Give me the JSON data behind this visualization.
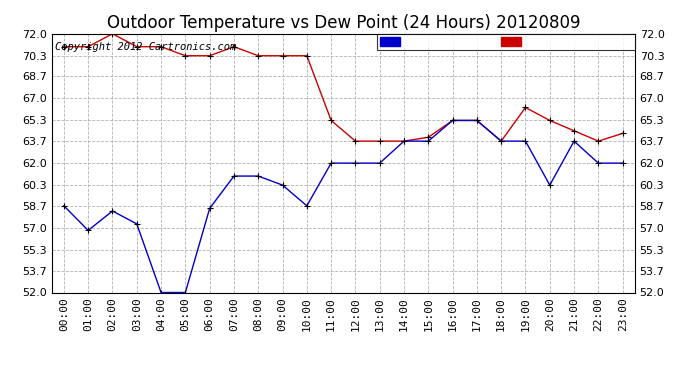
{
  "title": "Outdoor Temperature vs Dew Point (24 Hours) 20120809",
  "copyright": "Copyright 2012 Cartronics.com",
  "background_color": "#ffffff",
  "plot_bg_color": "#ffffff",
  "grid_color": "#aaaaaa",
  "hours": [
    "00:00",
    "01:00",
    "02:00",
    "03:00",
    "04:00",
    "05:00",
    "06:00",
    "07:00",
    "08:00",
    "09:00",
    "10:00",
    "11:00",
    "12:00",
    "13:00",
    "14:00",
    "15:00",
    "16:00",
    "17:00",
    "18:00",
    "19:00",
    "20:00",
    "21:00",
    "22:00",
    "23:00"
  ],
  "temperature": [
    71.0,
    71.0,
    72.0,
    71.0,
    71.0,
    70.3,
    70.3,
    71.0,
    70.3,
    70.3,
    70.3,
    65.3,
    63.7,
    63.7,
    63.7,
    64.0,
    65.3,
    65.3,
    63.7,
    66.3,
    65.3,
    64.5,
    63.7,
    64.3
  ],
  "dew_point": [
    58.7,
    56.8,
    58.3,
    57.3,
    52.0,
    52.0,
    58.5,
    61.0,
    61.0,
    60.3,
    58.7,
    62.0,
    62.0,
    62.0,
    63.7,
    63.7,
    65.3,
    65.3,
    63.7,
    63.7,
    60.3,
    63.7,
    62.0,
    62.0
  ],
  "ylim": [
    52.0,
    72.0
  ],
  "yticks": [
    52.0,
    53.7,
    55.3,
    57.0,
    58.7,
    60.3,
    62.0,
    63.7,
    65.3,
    67.0,
    68.7,
    70.3,
    72.0
  ],
  "temp_color": "#cc0000",
  "dew_color": "#0000cc",
  "marker_color": "#000000",
  "title_fontsize": 12,
  "tick_fontsize": 8,
  "legend_fontsize": 8,
  "copyright_fontsize": 7.5
}
